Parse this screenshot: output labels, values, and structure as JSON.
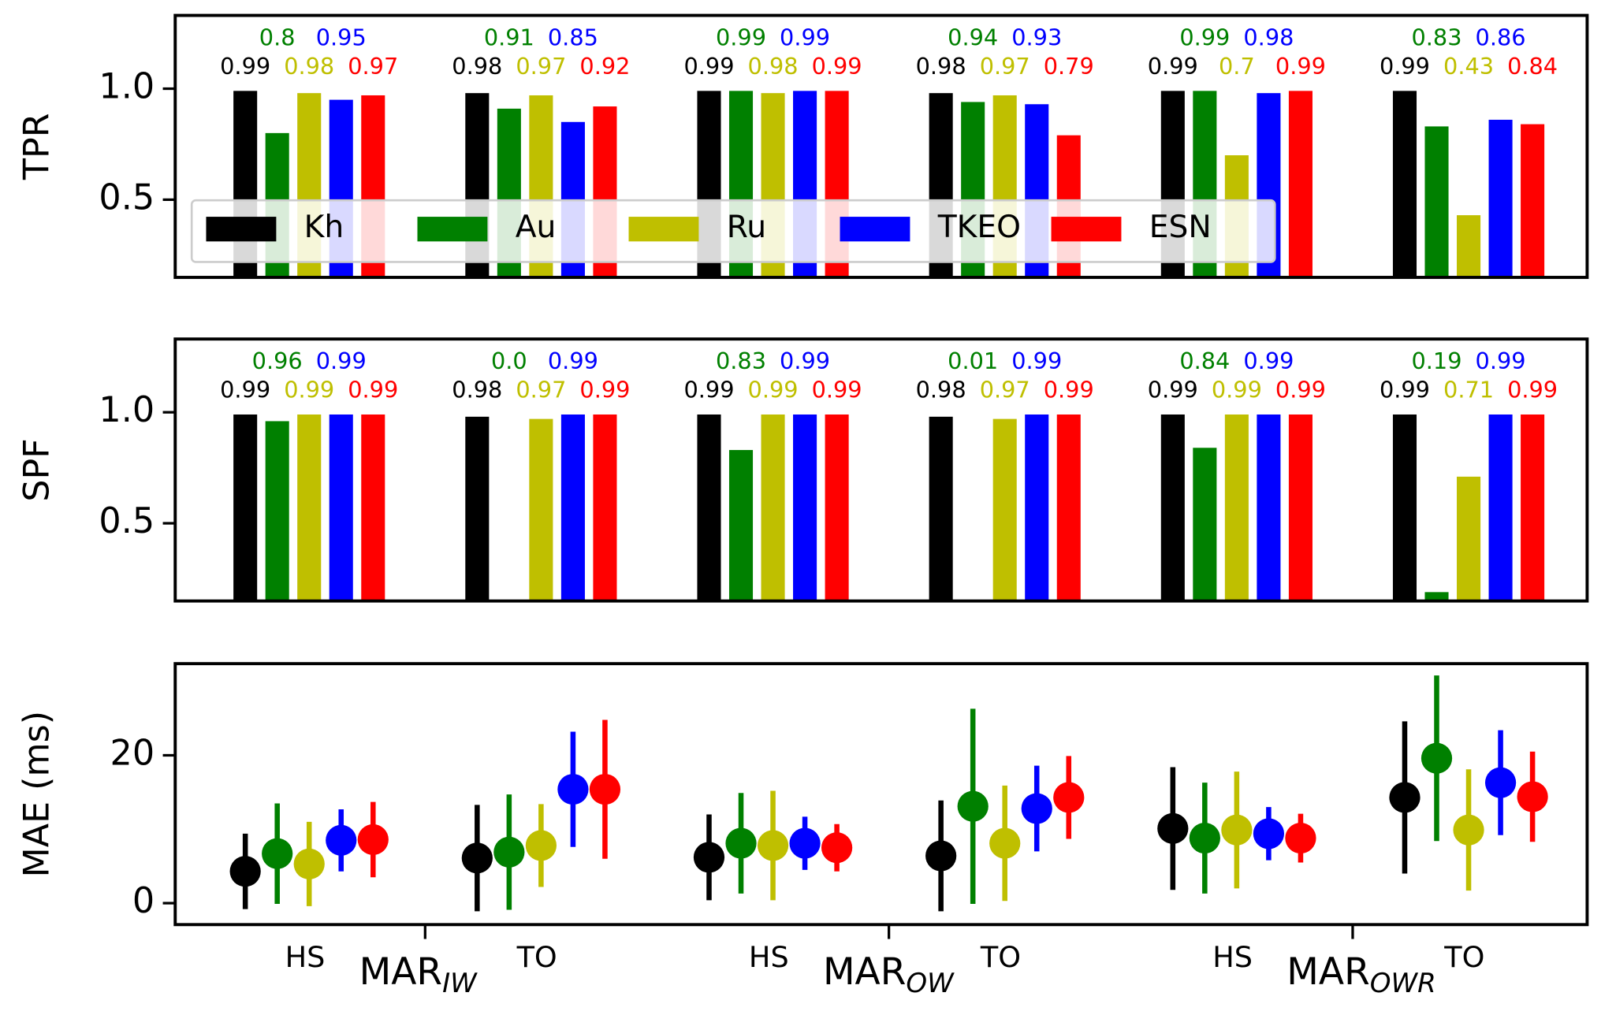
{
  "chart_data": [
    {
      "type": "bar",
      "ylabel": "TPR",
      "ylim": [
        0.15,
        1.33
      ],
      "yticks": [
        0.5,
        {
          "value": 1,
          "label": "1.0"
        }
      ],
      "legend": "lower left",
      "series": [
        {
          "name": "Kh",
          "color": "#000000",
          "values": [
            0.99,
            0.98,
            0.99,
            0.98,
            0.99,
            0.99
          ]
        },
        {
          "name": "Au",
          "color": "#008000",
          "values": [
            0.8,
            0.91,
            0.99,
            0.94,
            0.99,
            0.83
          ]
        },
        {
          "name": "Ru",
          "color": "#bfbf00",
          "values": [
            0.98,
            0.97,
            0.98,
            0.97,
            0.7,
            0.43
          ]
        },
        {
          "name": "TKEO",
          "color": "#0000ff",
          "values": [
            0.95,
            0.85,
            0.99,
            0.93,
            0.98,
            0.86
          ]
        },
        {
          "name": "ESN",
          "color": "#ff0000",
          "values": [
            0.97,
            0.92,
            0.99,
            0.79,
            0.99,
            0.84
          ]
        }
      ]
    },
    {
      "type": "bar",
      "ylabel": "SPF",
      "ylim": [
        0.15,
        1.33
      ],
      "yticks": [
        0.5,
        {
          "value": 1,
          "label": "1.0"
        }
      ],
      "series": [
        {
          "color": "#000000",
          "values": [
            0.99,
            0.98,
            0.99,
            0.98,
            0.99,
            0.99
          ]
        },
        {
          "color": "#008000",
          "values": [
            0.96,
            0,
            0.83,
            0.01,
            0.84,
            0.19
          ],
          "value_labels": [
            "0.96",
            "0.0",
            "0.83",
            "0.01",
            "0.84",
            "0.19"
          ]
        },
        {
          "color": "#bfbf00",
          "values": [
            0.99,
            0.97,
            0.99,
            0.97,
            0.99,
            0.71
          ]
        },
        {
          "color": "#0000ff",
          "values": [
            0.99,
            0.99,
            0.99,
            0.99,
            0.99,
            0.99
          ]
        },
        {
          "color": "#ff0000",
          "values": [
            0.99,
            0.99,
            0.99,
            0.99,
            0.99,
            0.99
          ]
        }
      ]
    },
    {
      "type": "errorbar",
      "ylabel": "MAE (ms)",
      "ylim": [
        -2.9,
        32.4
      ],
      "yticks": [
        0,
        20
      ],
      "categories": [
        "HS",
        "TO",
        "HS",
        "TO",
        "HS",
        "TO"
      ],
      "groups": [
        {
          "text": "MAR",
          "sub": "IW"
        },
        {
          "text": "MAR",
          "sub": "OW"
        },
        {
          "text": "MAR",
          "sub": "OWR"
        }
      ],
      "series": [
        {
          "color": "#000000",
          "values": [
            4.3,
            6.1,
            6.2,
            6.4,
            10.1,
            14.3
          ],
          "errors": [
            5.1,
            7.2,
            5.8,
            7.5,
            8.3,
            10.3
          ]
        },
        {
          "color": "#008000",
          "values": [
            6.7,
            6.9,
            8.1,
            13.1,
            8.8,
            19.6
          ],
          "errors": [
            6.8,
            7.8,
            6.8,
            13.2,
            7.5,
            11.2
          ]
        },
        {
          "color": "#bfbf00",
          "values": [
            5.3,
            7.8,
            7.8,
            8.1,
            9.9,
            9.9
          ],
          "errors": [
            5.7,
            5.6,
            7.4,
            7.8,
            7.9,
            8.2
          ]
        },
        {
          "color": "#0000ff",
          "values": [
            8.5,
            15.4,
            8.1,
            12.8,
            9.4,
            16.3
          ],
          "errors": [
            4.2,
            7.8,
            3.6,
            5.8,
            3.6,
            7.1
          ]
        },
        {
          "color": "#ff0000",
          "values": [
            8.6,
            15.4,
            7.5,
            14.3,
            8.8,
            14.4
          ],
          "errors": [
            5.1,
            9.4,
            3.2,
            5.6,
            3.3,
            6.1
          ]
        }
      ]
    }
  ]
}
